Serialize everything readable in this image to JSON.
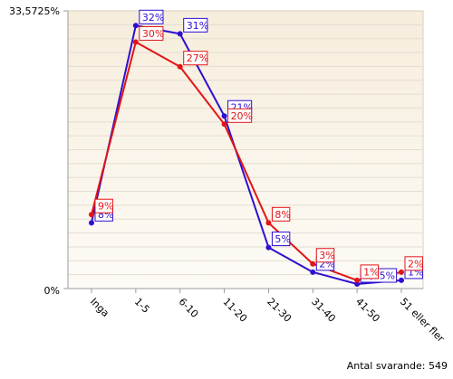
{
  "chart_data": {
    "type": "line",
    "categories": [
      "Inga",
      "1-5",
      "6-10",
      "11-20",
      "21-30",
      "31-40",
      "41-50",
      "51 eller fler"
    ],
    "ylim": [
      0,
      33.5725
    ],
    "y_axis_labels": {
      "top": "33,5725%",
      "bottom": "0%"
    },
    "grid": true,
    "series": [
      {
        "color": "#2d0fd2",
        "values": [
          8,
          32,
          31,
          21,
          5,
          2,
          0.55,
          1
        ],
        "labels": [
          "8%",
          "32%",
          "31%",
          "21%",
          "5%",
          "2%",
          "0,55%",
          "1%"
        ]
      },
      {
        "color": "#e31414",
        "values": [
          9,
          30,
          27,
          20,
          8,
          3,
          1,
          2
        ],
        "labels": [
          "9%",
          "30%",
          "27%",
          "20%",
          "8%",
          "3%",
          "1%",
          "2%"
        ]
      }
    ]
  },
  "footer": {
    "text": "Antal svarande: 549"
  },
  "colors": {
    "plot_background": "#fbf6ec",
    "axis": "#9b9b9b",
    "grid": "#e4ddd0"
  }
}
